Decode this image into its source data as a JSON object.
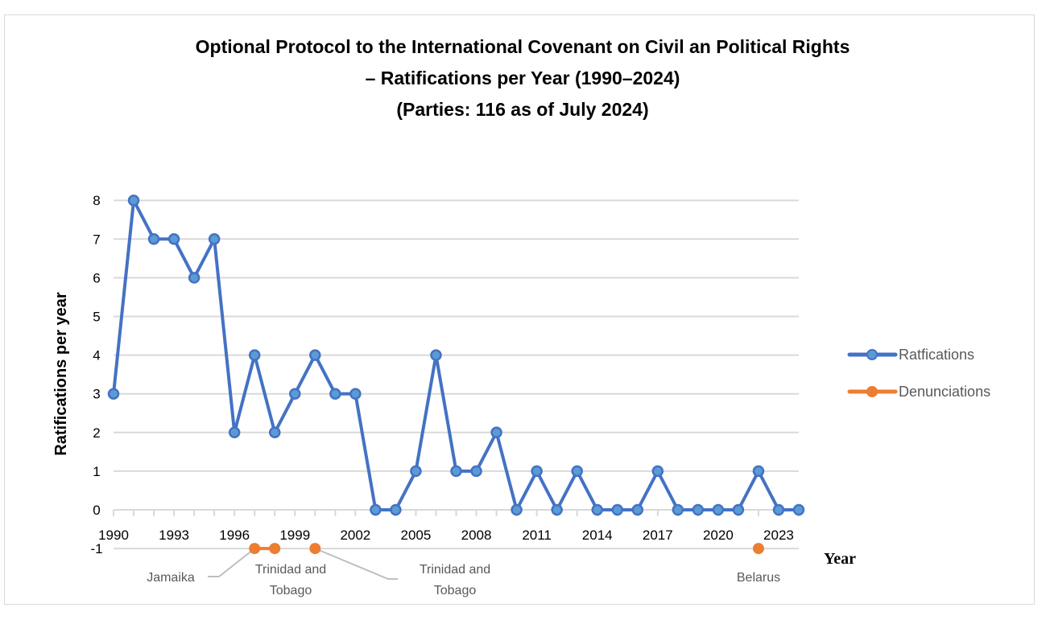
{
  "chart_data": {
    "type": "line",
    "title": [
      "Optional Protocol to the International Covenant on Civil an Political Rights",
      "– Ratifications per Year (1990–2024)",
      "(Parties: 116 as of July 2024)"
    ],
    "xlabel": "Year",
    "ylabel": "Ratifications per year",
    "x": [
      1990,
      1991,
      1992,
      1993,
      1994,
      1995,
      1996,
      1997,
      1998,
      1999,
      2000,
      2001,
      2002,
      2003,
      2004,
      2005,
      2006,
      2007,
      2008,
      2009,
      2010,
      2011,
      2012,
      2013,
      2014,
      2015,
      2016,
      2017,
      2018,
      2019,
      2020,
      2021,
      2022,
      2023,
      2024
    ],
    "xticks": [
      "1990",
      "1993",
      "1996",
      "1999",
      "2002",
      "2005",
      "2008",
      "2011",
      "2014",
      "2017",
      "2020",
      "2023"
    ],
    "yticks": [
      "-1",
      "0",
      "1",
      "2",
      "3",
      "4",
      "5",
      "6",
      "7",
      "8"
    ],
    "ylim": [
      -1,
      8
    ],
    "grid": true,
    "legend_position": "right",
    "series": [
      {
        "name": "Ratfications",
        "color": "#4472c4",
        "marker_fill": "#5b9bd5",
        "values": [
          3,
          8,
          7,
          7,
          6,
          7,
          2,
          4,
          2,
          3,
          4,
          3,
          3,
          0,
          0,
          1,
          4,
          1,
          1,
          2,
          0,
          1,
          0,
          1,
          0,
          0,
          0,
          1,
          0,
          0,
          0,
          0,
          1,
          0,
          0
        ]
      },
      {
        "name": "Denunciations",
        "color": "#ed7d31",
        "points": [
          [
            1997,
            -1
          ],
          [
            1998,
            -1
          ],
          [
            2000,
            -1
          ],
          [
            2022,
            -1
          ]
        ],
        "segments": [
          [
            1997,
            1998
          ]
        ]
      }
    ],
    "annotations": [
      {
        "text": "Jamaika",
        "x": 1997,
        "y": -1
      },
      {
        "text": [
          "Trinidad and",
          "Tobago"
        ],
        "x": 1998,
        "y": -1
      },
      {
        "text": [
          "Trinidad and",
          "Tobago"
        ],
        "x": 2000,
        "y": -1
      },
      {
        "text": "Belarus",
        "x": 2022,
        "y": -1
      }
    ]
  }
}
